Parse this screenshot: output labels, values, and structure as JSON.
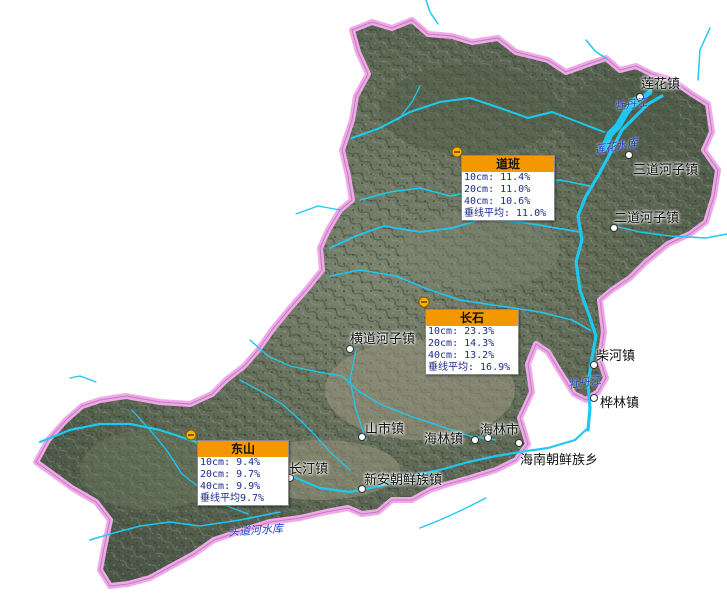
{
  "towns": [
    {
      "id": "lianhua",
      "label": "莲花镇"
    },
    {
      "id": "sandaohezi",
      "label": "三道河子镇"
    },
    {
      "id": "erdaohezi",
      "label": "二道河子镇"
    },
    {
      "id": "chaihe",
      "label": "柴河镇"
    },
    {
      "id": "hualin",
      "label": "桦林镇"
    },
    {
      "id": "hengdaohezi",
      "label": "横道河子镇"
    },
    {
      "id": "shanshi",
      "label": "山市镇"
    },
    {
      "id": "hailinzhen",
      "label": "海林镇"
    },
    {
      "id": "hailinshi",
      "label": "海林市"
    },
    {
      "id": "hainan",
      "label": "海南朝鲜族乡"
    },
    {
      "id": "xinan",
      "label": "新安朝鲜族镇"
    },
    {
      "id": "changting",
      "label": "长汀镇"
    }
  ],
  "rivers": [
    {
      "id": "mudanjiang_north",
      "label": "牡丹江"
    },
    {
      "id": "lianhuahu",
      "label": "莲花水库"
    },
    {
      "id": "mudanjiang_east",
      "label": "牡丹江"
    },
    {
      "id": "south",
      "label": "头道河水库"
    }
  ],
  "stations": [
    {
      "id": "daoban",
      "name": "道班",
      "rows": [
        "10cm: 11.4%",
        "20cm: 11.0%",
        "40cm: 10.6%",
        "垂线平均: 11.0%"
      ],
      "values": {
        "10cm": 11.4,
        "20cm": 11.0,
        "40cm": 10.6,
        "avg": 11.0
      }
    },
    {
      "id": "changshi",
      "name": "长石",
      "rows": [
        "10cm: 23.3%",
        "20cm: 14.3%",
        "40cm: 13.2%",
        "垂线平均: 16.9%"
      ],
      "values": {
        "10cm": 23.3,
        "20cm": 14.3,
        "40cm": 13.2,
        "avg": 16.9
      }
    },
    {
      "id": "dongshan",
      "name": "东山",
      "rows": [
        "10cm: 9.4%",
        "20cm: 9.7%",
        "40cm: 9.9%",
        "垂线平均9.7%"
      ],
      "values": {
        "10cm": 9.4,
        "20cm": 9.7,
        "40cm": 9.9,
        "avg": 9.7
      }
    }
  ],
  "colors": {
    "boundary": "#f0a8e8",
    "river": "#1ec8f0",
    "station_header": "#f39800",
    "station_text": "#1c2c8c",
    "terrain": "#5f6a55"
  }
}
